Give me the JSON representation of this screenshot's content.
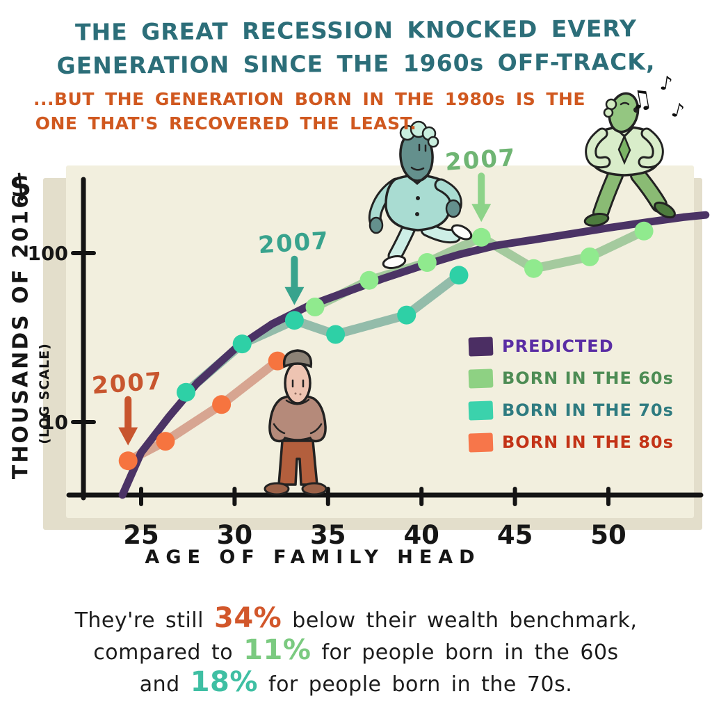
{
  "title": {
    "line1": "THE GREAT RECESSION KNOCKED EVERY",
    "line2": "GENERATION SINCE THE 1960s OFF-TRACK,",
    "color": "#2c6e79"
  },
  "subtitle": {
    "line1": "...BUT THE GENERATION BORN IN THE 1980s IS THE",
    "line2": "ONE THAT'S RECOVERED THE LEAST.",
    "color": "#d0581f"
  },
  "chart_data": {
    "type": "line",
    "panel_color": "#f2efde",
    "panel_shadow_color": "#e3decb",
    "x_axis": {
      "label": "AGE OF FAMILY HEAD",
      "ticks": [
        25,
        30,
        35,
        40,
        45,
        50
      ],
      "range": [
        21.9,
        55.5
      ]
    },
    "y_axis": {
      "label": "THOUSANDS OF 2016",
      "unit": "$",
      "note": "(LOG SCALE)",
      "scale": "log",
      "ticks": [
        10,
        100
      ],
      "range": [
        3.5,
        190
      ]
    },
    "series": [
      {
        "id": "born-80s",
        "name": "BORN IN THE 80s",
        "line_color": "#d7a591",
        "dot_color": "#f6743f",
        "points": [
          [
            24.3,
            5.9
          ],
          [
            26.3,
            7.7
          ],
          [
            29.3,
            12.7
          ],
          [
            32.3,
            23
          ]
        ]
      },
      {
        "id": "born-70s",
        "name": "BORN IN THE 70s",
        "line_color": "#93bcaa",
        "dot_color": "#2ed0a6",
        "points": [
          [
            27.4,
            15
          ],
          [
            30.4,
            29
          ],
          [
            33.2,
            40
          ],
          [
            35.4,
            33
          ],
          [
            39.2,
            43
          ],
          [
            42,
            74
          ]
        ]
      },
      {
        "id": "born-60s",
        "name": "BORN IN THE 60s",
        "line_color": "#a4ca9e",
        "dot_color": "#90ea8e",
        "points": [
          [
            34.3,
            48
          ],
          [
            37.2,
            69
          ],
          [
            40.3,
            88
          ],
          [
            43.2,
            124
          ],
          [
            46,
            81
          ],
          [
            49,
            95
          ],
          [
            51.9,
            135
          ]
        ]
      },
      {
        "id": "predicted",
        "name": "PREDICTED",
        "line_color": "#4b3365",
        "dot_color": null,
        "points": [
          [
            24,
            3.7
          ],
          [
            25,
            6.6
          ],
          [
            26.5,
            10.8
          ],
          [
            28,
            17
          ],
          [
            30,
            27
          ],
          [
            32,
            38
          ],
          [
            34,
            49
          ],
          [
            36,
            59
          ],
          [
            38,
            71
          ],
          [
            40,
            84
          ],
          [
            42,
            98
          ],
          [
            44,
            111
          ],
          [
            46,
            120
          ],
          [
            48,
            130
          ],
          [
            50,
            141
          ],
          [
            52,
            152
          ],
          [
            54,
            163
          ],
          [
            55.2,
            168
          ]
        ]
      }
    ],
    "annotations": [
      {
        "label": "2007",
        "series": "born-80s",
        "point_index": 0,
        "text_color": "#c8552e",
        "arrow_color": "#c8552e"
      },
      {
        "label": "2007",
        "series": "born-70s",
        "point_index": 2,
        "text_color": "#38a38d",
        "arrow_color": "#38a38d"
      },
      {
        "label": "2007",
        "series": "born-60s",
        "point_index": 3,
        "text_color": "#6fb573",
        "arrow_color": "#8dd389"
      }
    ]
  },
  "legend": [
    {
      "label": "PREDICTED",
      "swatch": "#4b2e63",
      "text_color": "#5a2da4"
    },
    {
      "label": "BORN IN THE 60s",
      "swatch": "#8ed183",
      "text_color": "#4d8c54"
    },
    {
      "label": "BORN IN THE 70s",
      "swatch": "#3bd2ac",
      "text_color": "#2e7b80"
    },
    {
      "label": "BORN IN THE 80s",
      "swatch": "#f7764a",
      "text_color": "#c33317"
    }
  ],
  "caption": {
    "lines": [
      [
        {
          "text": "They're still "
        },
        {
          "text": "34%",
          "color": "#d2572b"
        },
        {
          "text": " below their wealth benchmark,"
        }
      ],
      [
        {
          "text": "compared to "
        },
        {
          "text": "11%",
          "color": "#7bca80"
        },
        {
          "text": " for people born in the 60s"
        }
      ],
      [
        {
          "text": "and "
        },
        {
          "text": "18%",
          "color": "#3fbfa3"
        },
        {
          "text": " for people born in the 70s."
        }
      ]
    ]
  },
  "decor": {
    "music_notes": [
      "♫",
      "♪",
      "♪"
    ]
  }
}
